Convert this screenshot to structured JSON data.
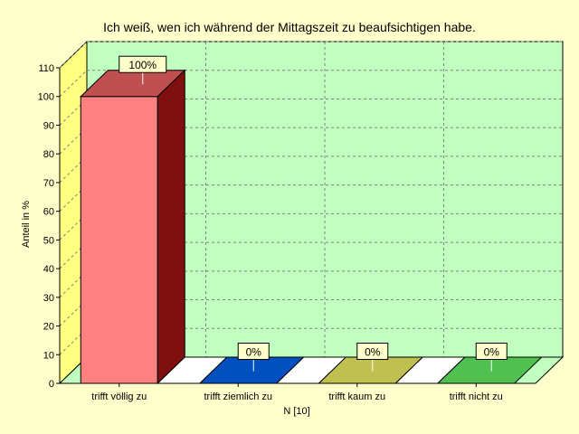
{
  "chart_data": {
    "type": "bar",
    "title": "Ich weiß, wen ich während der Mittagszeit zu beaufsichtigen habe.",
    "xlabel": "N [10]",
    "ylabel": "Anteil in %",
    "ylim": [
      0,
      110
    ],
    "yticks": [
      0,
      10,
      20,
      30,
      40,
      50,
      60,
      70,
      80,
      90,
      100,
      110
    ],
    "categories": [
      "trifft völlig zu",
      "trifft ziemlich zu",
      "trifft kaum zu",
      "trifft nicht zu"
    ],
    "values": [
      100,
      0,
      0,
      0
    ],
    "data_labels": [
      "100%",
      "0%",
      "0%",
      "0%"
    ],
    "grid": true,
    "colors": {
      "background": "#ffffcc",
      "plot_back": "#c0ffc0",
      "plot_left_wall": "#ffff80",
      "grid": "#808080",
      "bar_fronts": [
        "#ff8080",
        "#0050c0",
        "#c0c050",
        "#50c050"
      ],
      "bar_tops": [
        "#c05050",
        "#0040a0",
        "#a0a040",
        "#40a040"
      ],
      "bar_sides": [
        "#801010",
        "#003080",
        "#808030",
        "#308030"
      ]
    }
  }
}
